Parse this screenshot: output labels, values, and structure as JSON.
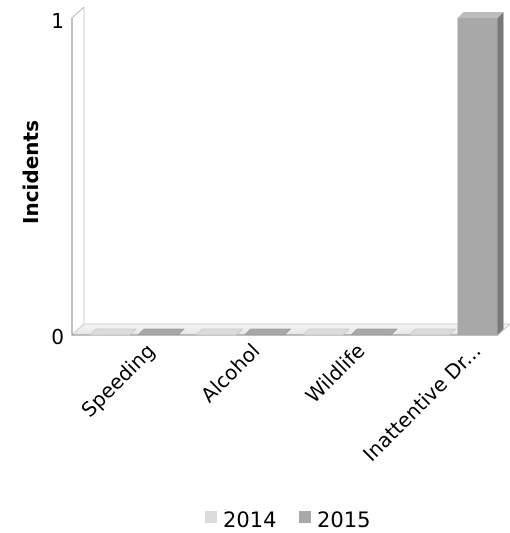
{
  "chart_data": {
    "type": "bar",
    "style": "3d-grouped",
    "title": "",
    "xlabel": "",
    "ylabel": "Incidents",
    "categories": [
      "Speeding",
      "Alcohol",
      "Wildlife",
      "Inattentive Dr..."
    ],
    "series": [
      {
        "name": "2014",
        "values": [
          0,
          0,
          0,
          0
        ],
        "color": "#dcdcdc"
      },
      {
        "name": "2015",
        "values": [
          0,
          0,
          0,
          1
        ],
        "color": "#a8a8a8"
      }
    ],
    "ylim": [
      0,
      1
    ],
    "yticks": [
      "0",
      "1"
    ],
    "grid": false,
    "legend": "bottom"
  }
}
